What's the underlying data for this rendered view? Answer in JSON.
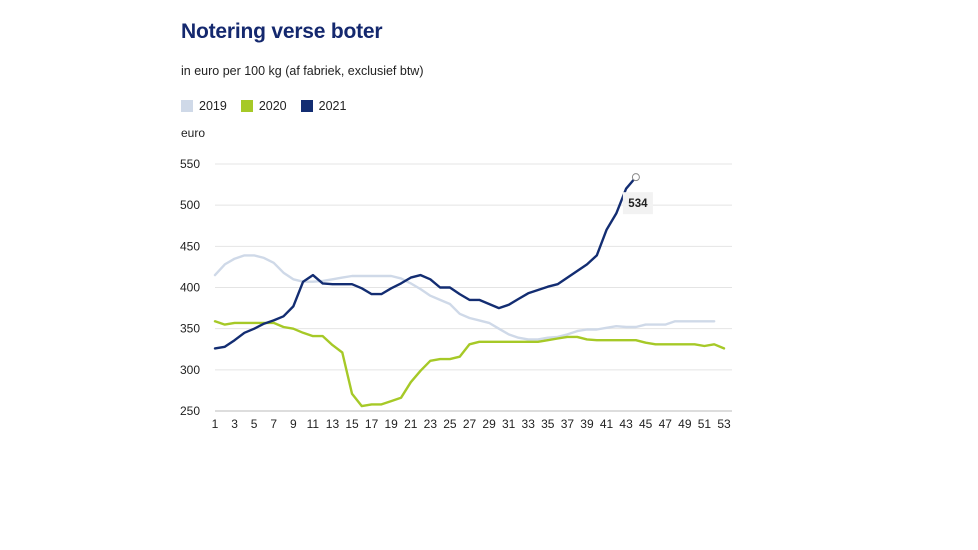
{
  "chart_data": {
    "type": "line",
    "title": "Notering verse boter",
    "subtitle": "in euro per 100 kg (af fabriek, exclusief btw)",
    "ylabel": "euro",
    "xlabel": "",
    "xlim": [
      1,
      53
    ],
    "ylim": [
      250,
      550
    ],
    "yticks": [
      250,
      300,
      350,
      400,
      450,
      500,
      550
    ],
    "xticks": [
      1,
      3,
      5,
      7,
      9,
      11,
      13,
      15,
      17,
      19,
      21,
      23,
      25,
      27,
      29,
      31,
      33,
      35,
      37,
      39,
      41,
      43,
      45,
      47,
      49,
      51,
      53
    ],
    "grid": "horizontal",
    "legend_position": "top-left",
    "series": [
      {
        "name": "2019",
        "color": "#cfd9e8",
        "x": [
          1,
          2,
          3,
          4,
          5,
          6,
          7,
          8,
          9,
          10,
          11,
          12,
          13,
          14,
          15,
          16,
          17,
          18,
          19,
          20,
          21,
          22,
          23,
          24,
          25,
          26,
          27,
          28,
          29,
          30,
          31,
          32,
          33,
          34,
          35,
          36,
          37,
          38,
          39,
          40,
          41,
          42,
          43,
          44,
          45,
          46,
          47,
          48,
          49,
          50,
          51,
          52
        ],
        "values": [
          415,
          428,
          435,
          439,
          439,
          436,
          430,
          418,
          410,
          407,
          407,
          408,
          410,
          412,
          414,
          414,
          414,
          414,
          414,
          411,
          405,
          398,
          390,
          385,
          380,
          368,
          363,
          360,
          357,
          350,
          343,
          339,
          337,
          337,
          339,
          340,
          343,
          347,
          349,
          349,
          351,
          353,
          352,
          352,
          355,
          355,
          355,
          359,
          359,
          359,
          359,
          359
        ]
      },
      {
        "name": "2020",
        "color": "#a6c927",
        "x": [
          1,
          2,
          3,
          4,
          5,
          6,
          7,
          8,
          9,
          10,
          11,
          12,
          13,
          14,
          15,
          16,
          17,
          18,
          19,
          20,
          21,
          22,
          23,
          24,
          25,
          26,
          27,
          28,
          29,
          30,
          31,
          32,
          33,
          34,
          35,
          36,
          37,
          38,
          39,
          40,
          41,
          42,
          43,
          44,
          45,
          46,
          47,
          48,
          49,
          50,
          51,
          52,
          53
        ],
        "values": [
          359,
          355,
          357,
          357,
          357,
          357,
          357,
          352,
          350,
          345,
          341,
          341,
          330,
          321,
          271,
          256,
          258,
          258,
          262,
          266,
          285,
          299,
          311,
          313,
          313,
          316,
          331,
          334,
          334,
          334,
          334,
          334,
          334,
          334,
          336,
          338,
          340,
          340,
          337,
          336,
          336,
          336,
          336,
          336,
          333,
          331,
          331,
          331,
          331,
          331,
          329,
          331,
          326
        ]
      },
      {
        "name": "2021",
        "color": "#132d72",
        "x": [
          1,
          2,
          3,
          4,
          5,
          6,
          7,
          8,
          9,
          10,
          11,
          12,
          13,
          14,
          15,
          16,
          17,
          18,
          19,
          20,
          21,
          22,
          23,
          24,
          25,
          26,
          27,
          28,
          29,
          30,
          31,
          32,
          33,
          34,
          35,
          36,
          37,
          38,
          39,
          40,
          41,
          42,
          43,
          44
        ],
        "values": [
          326,
          328,
          336,
          345,
          350,
          356,
          360,
          365,
          377,
          407,
          415,
          405,
          404,
          404,
          404,
          399,
          392,
          392,
          399,
          405,
          412,
          415,
          410,
          400,
          400,
          392,
          385,
          385,
          380,
          375,
          379,
          386,
          393,
          397,
          401,
          404,
          412,
          420,
          428,
          439,
          470,
          490,
          520,
          534
        ]
      }
    ],
    "annotation": {
      "label": "534",
      "series": "2021",
      "x": 44,
      "value": 534
    }
  }
}
